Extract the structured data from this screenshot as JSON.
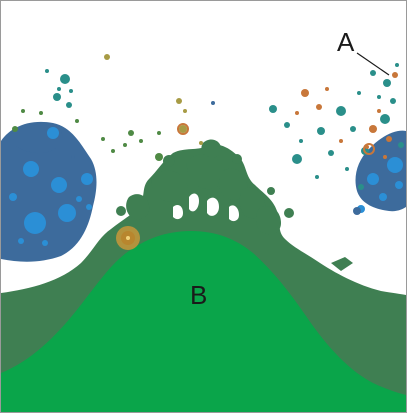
{
  "labels": {
    "a": "A",
    "b": "B"
  },
  "colors": {
    "background": "#ffffff",
    "outer_growth": "#3f7f52",
    "inner_dome": "#0aa54a",
    "blob_blue_fill": "#3d6b9c",
    "blob_blue_spot": "#2b8fd6",
    "particle_teal": "#2a8f8a",
    "particle_orange": "#c8773a",
    "particle_olive": "#a79b45",
    "particle_green": "#4f8a45",
    "orange_ring": "#c8963a",
    "leader_line": "#1a1a1a"
  }
}
